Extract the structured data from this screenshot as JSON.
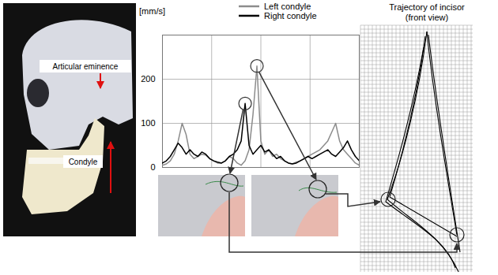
{
  "chart_data": {
    "type": "line",
    "y_label": "[mm/s]",
    "x": [
      0,
      2,
      4,
      6,
      8,
      10,
      12,
      14,
      16,
      18,
      20,
      22,
      24,
      26,
      28,
      30,
      32,
      34,
      36,
      38,
      40,
      42,
      44,
      46,
      48,
      50,
      52,
      54,
      56,
      58,
      60,
      62,
      64,
      66,
      68,
      70,
      72,
      74,
      76,
      78,
      80,
      82,
      84,
      86,
      88,
      90,
      92,
      94,
      96,
      98,
      100
    ],
    "series": [
      {
        "name": "Left condyle",
        "color": "#8c8c8c",
        "values": [
          5,
          8,
          15,
          30,
          60,
          100,
          75,
          30,
          20,
          25,
          30,
          28,
          20,
          15,
          10,
          10,
          15,
          25,
          20,
          10,
          5,
          15,
          40,
          120,
          230,
          60,
          30,
          40,
          25,
          30,
          20,
          15,
          10,
          8,
          12,
          15,
          20,
          25,
          30,
          35,
          40,
          50,
          60,
          80,
          100,
          60,
          40,
          30,
          20,
          10,
          5
        ]
      },
      {
        "name": "Right condyle",
        "color": "#000000",
        "values": [
          10,
          15,
          25,
          40,
          55,
          45,
          30,
          40,
          30,
          25,
          35,
          30,
          20,
          15,
          12,
          10,
          15,
          25,
          30,
          40,
          60,
          145,
          50,
          30,
          40,
          50,
          35,
          40,
          30,
          20,
          25,
          15,
          10,
          8,
          10,
          15,
          20,
          25,
          20,
          25,
          30,
          35,
          40,
          30,
          25,
          35,
          45,
          60,
          40,
          25,
          15
        ]
      }
    ],
    "xlim": [
      0,
      100
    ],
    "xticks": [
      0,
      25,
      50,
      75,
      100
    ],
    "ylim": [
      0,
      300
    ],
    "yticks": [
      0,
      100,
      200
    ],
    "grid": true,
    "tick_labels": "y",
    "legend": "top"
  },
  "annotations": {
    "skull_labels": [
      "Articular eminence",
      "Condyle"
    ],
    "trajectory_title": [
      "Trajectory of incisor",
      "(front view)"
    ]
  }
}
